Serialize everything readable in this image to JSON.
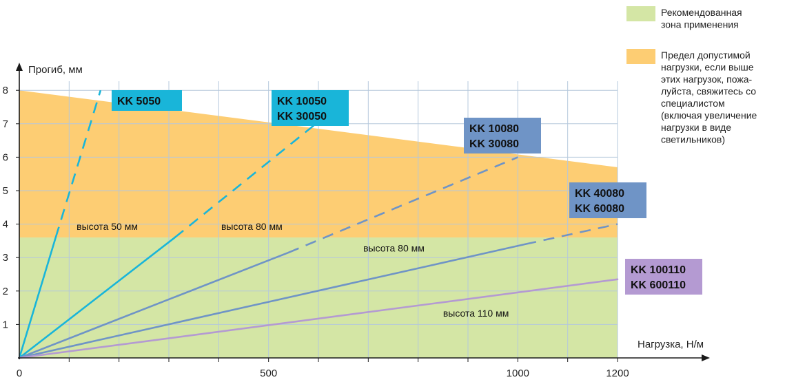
{
  "chart_data": {
    "type": "line",
    "ylabel": "Прогиб, мм",
    "xlabel": "Нагрузка, Н/м",
    "xlim": [
      0,
      1200
    ],
    "ylim": [
      0,
      8.3
    ],
    "x_ticks": [
      0,
      500,
      1000,
      1200
    ],
    "y_ticks": [
      1,
      2,
      3,
      4,
      5,
      6,
      7,
      8
    ],
    "grid": true,
    "legend_position": "top-right",
    "colors": {
      "recommended_zone": "#d4e6a5",
      "limit_zone": "#fdcd73",
      "grid": "#b5c8dc",
      "axis": "#1a1a1a"
    },
    "zones": [
      {
        "id": "recommended",
        "label_lines": [
          "Рекомендованная",
          "зона применения"
        ],
        "color": "#d4e6a5",
        "y_top": 3.6
      },
      {
        "id": "limit",
        "label_lines": [
          "Предел допустимой",
          "нагрузки, если выше",
          "этих нагрузок, пожа-",
          "луйста, свяжитесь со",
          "специалистом",
          "(включая увеличение",
          "нагрузки в виде",
          "светильников)"
        ],
        "color": "#fdcd73",
        "boundary": [
          [
            0,
            8.0
          ],
          [
            1200,
            5.7
          ]
        ]
      }
    ],
    "series": [
      {
        "id": "kk5050",
        "labels": [
          "KK 5050"
        ],
        "color": "#19b5d9",
        "box_color": "#19b5d9",
        "solid": [
          [
            0,
            0
          ],
          [
            73,
            3.6
          ]
        ],
        "dashed": [
          [
            73,
            3.6
          ],
          [
            163,
            8.0
          ]
        ]
      },
      {
        "id": "kk10050",
        "labels": [
          "KK 10050",
          "KK 30050"
        ],
        "color": "#19b5d9",
        "box_color": "#19b5d9",
        "solid": [
          [
            0,
            0
          ],
          [
            312,
            3.6
          ]
        ],
        "dashed": [
          [
            312,
            3.6
          ],
          [
            595,
            7.0
          ]
        ]
      },
      {
        "id": "kk10080",
        "labels": [
          "KK 10080",
          "KK 30080"
        ],
        "color": "#6f94c6",
        "box_color": "#6f94c6",
        "solid": [
          [
            0,
            0
          ],
          [
            540,
            3.15
          ]
        ],
        "dashed": [
          [
            540,
            3.15
          ],
          [
            1000,
            6.0
          ]
        ]
      },
      {
        "id": "kk40080",
        "labels": [
          "KK 40080",
          "KK 60080"
        ],
        "color": "#6f94c6",
        "box_color": "#6f94c6",
        "solid": [
          [
            0,
            0
          ],
          [
            1015,
            3.4
          ]
        ],
        "dashed": [
          [
            1015,
            3.4
          ],
          [
            1200,
            4.0
          ]
        ]
      },
      {
        "id": "kk100110",
        "labels": [
          "KK 100110",
          "KK 600110"
        ],
        "color": "#b49ad2",
        "box_color": "#b49ad2",
        "solid": [
          [
            0,
            0
          ],
          [
            1200,
            2.35
          ]
        ],
        "dashed": []
      }
    ],
    "annotations": [
      {
        "id": "h50",
        "text": "высота 50 мм",
        "x": 115,
        "y": 3.75
      },
      {
        "id": "h80a",
        "text": "высота 80 мм",
        "x": 405,
        "y": 3.75
      },
      {
        "id": "h80b",
        "text": "высота 80 мм",
        "x": 690,
        "y": 3.1
      },
      {
        "id": "h110",
        "text": "высота 110 мм",
        "x": 850,
        "y": 1.15
      }
    ]
  }
}
